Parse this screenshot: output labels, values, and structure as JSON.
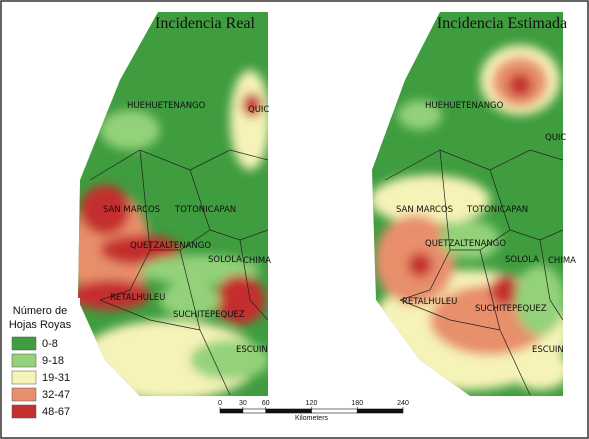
{
  "maps": [
    {
      "title": "Incidencia Real",
      "regions": [
        "HUEHUETENANGO",
        "QUIC",
        "SAN MARCOS",
        "TOTONICAPAN",
        "QUETZALTENANGO",
        "SOLOLA",
        "CHIMA",
        "RETALHULEU",
        "SUCHITEPEQUEZ",
        "ESCUIN"
      ]
    },
    {
      "title": "Incidencia Estimada",
      "regions": [
        "HUEHUETENANGO",
        "QUIC",
        "SAN MARCOS",
        "TOTONICAPAN",
        "QUETZALTENANGO",
        "SOLOLA",
        "CHIMA",
        "RETALHULEU",
        "SUCHITEPEQUEZ",
        "ESCUIN"
      ]
    }
  ],
  "legend": {
    "title": [
      "Número de",
      "Hojas Royas"
    ],
    "entries": [
      {
        "label": "0-8",
        "color": "#3f9c3f"
      },
      {
        "label": "9-18",
        "color": "#93d27a"
      },
      {
        "label": "19-31",
        "color": "#f6f3b8"
      },
      {
        "label": "32-47",
        "color": "#e88f6c"
      },
      {
        "label": "48-67",
        "color": "#c52f2f"
      }
    ]
  },
  "scale": {
    "ticks": [
      0,
      30,
      60,
      120,
      180,
      240
    ],
    "unit": "Kilometers"
  }
}
